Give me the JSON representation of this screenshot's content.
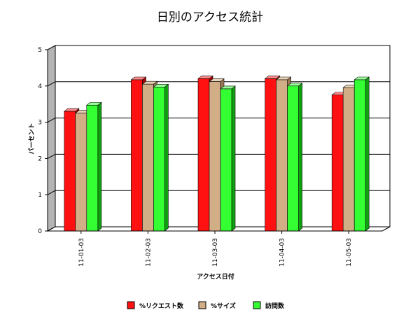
{
  "chart_data": {
    "type": "bar",
    "title": "日別のアクセス統計",
    "xlabel": "アクセス日付",
    "ylabel": "パーセント",
    "categories": [
      "11-01-03",
      "11-02-03",
      "11-03-03",
      "11-04-03",
      "11-05-03"
    ],
    "series": [
      {
        "name": "%リクエスト数",
        "color": "#ff1111",
        "side": "#aa0000",
        "top": "#ff8a8a",
        "values": [
          3.3,
          4.17,
          4.2,
          4.2,
          3.75
        ]
      },
      {
        "name": "%サイズ",
        "color": "#d2ae86",
        "side": "#9a7a55",
        "top": "#ead2b6",
        "values": [
          3.25,
          4.05,
          4.12,
          4.17,
          3.95
        ]
      },
      {
        "name": "訪問数",
        "color": "#33ff33",
        "side": "#11a011",
        "top": "#99ff99",
        "values": [
          3.47,
          3.97,
          3.92,
          4.0,
          4.17
        ]
      }
    ],
    "ylim": [
      0,
      5
    ],
    "yticks": [
      "0",
      "1",
      "2",
      "3",
      "4",
      "5"
    ],
    "grid": true,
    "legend_position": "bottom"
  }
}
